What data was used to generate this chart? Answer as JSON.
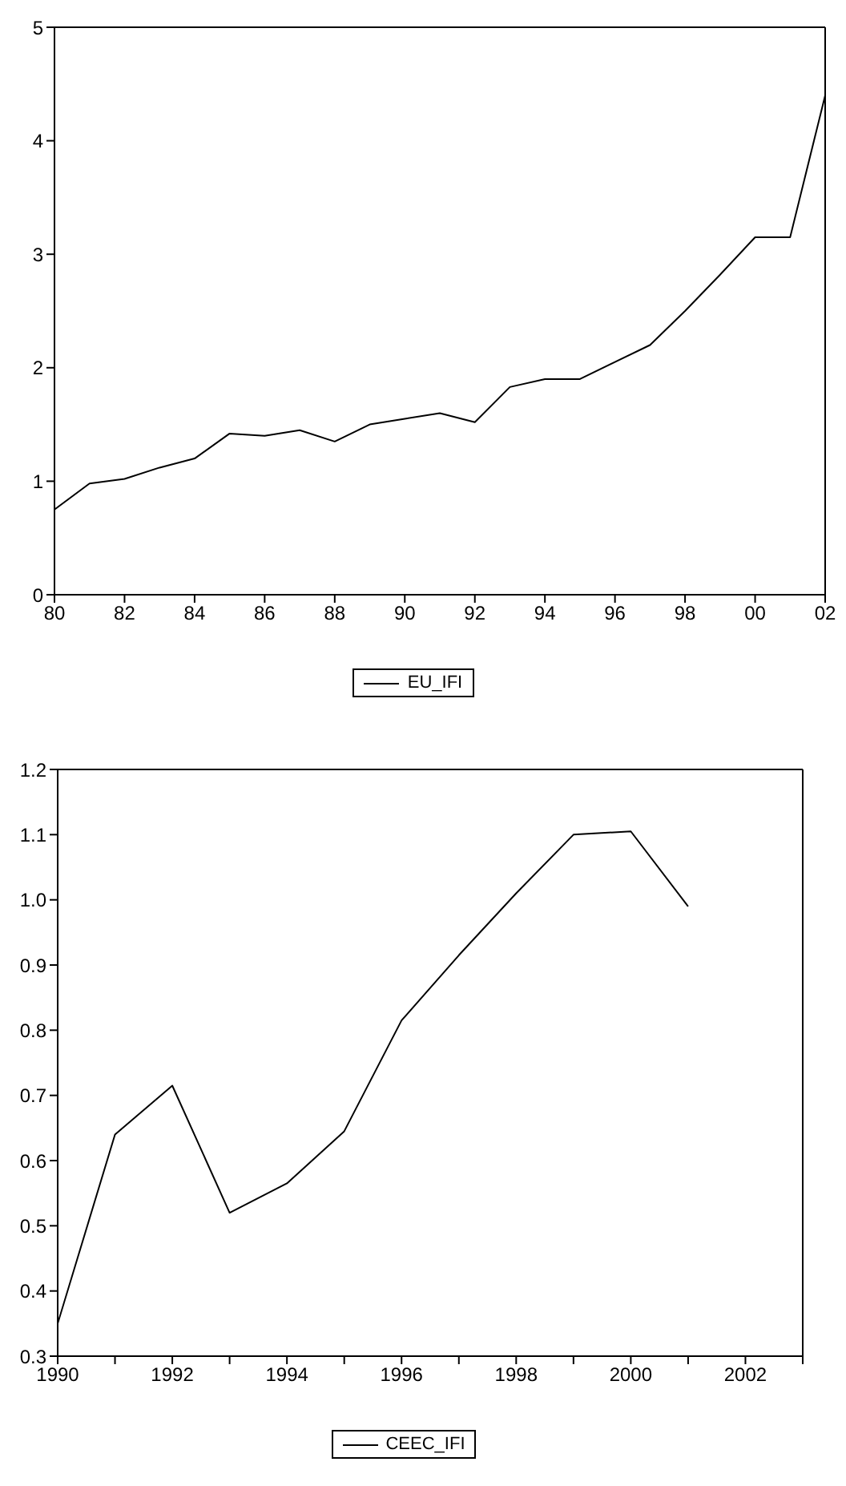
{
  "chart_data": [
    {
      "type": "line",
      "x": [
        1980,
        1981,
        1982,
        1983,
        1984,
        1985,
        1986,
        1987,
        1988,
        1989,
        1990,
        1991,
        1992,
        1993,
        1994,
        1995,
        1996,
        1997,
        1998,
        1999,
        2000,
        2001,
        2002
      ],
      "series": [
        {
          "name": "EU_IFI",
          "color": "#000000",
          "values": [
            0.75,
            0.98,
            1.02,
            1.12,
            1.2,
            1.42,
            1.4,
            1.45,
            1.35,
            1.5,
            1.55,
            1.6,
            1.52,
            1.83,
            1.9,
            1.9,
            2.05,
            2.2,
            2.5,
            2.82,
            3.15,
            3.15,
            4.4
          ]
        }
      ],
      "xlim": [
        1980,
        2002
      ],
      "xticks": [
        {
          "value": 1980,
          "label": "80"
        },
        {
          "value": 1982,
          "label": "82"
        },
        {
          "value": 1984,
          "label": "84"
        },
        {
          "value": 1986,
          "label": "86"
        },
        {
          "value": 1988,
          "label": "88"
        },
        {
          "value": 1990,
          "label": "90"
        },
        {
          "value": 1992,
          "label": "92"
        },
        {
          "value": 1994,
          "label": "94"
        },
        {
          "value": 1996,
          "label": "96"
        },
        {
          "value": 1998,
          "label": "98"
        },
        {
          "value": 2000,
          "label": "00"
        },
        {
          "value": 2002,
          "label": "02"
        }
      ],
      "ylim": [
        0,
        5
      ],
      "yticks": [
        0,
        1,
        2,
        3,
        4,
        5
      ],
      "grid": false,
      "legend": "bottom",
      "marker": "none",
      "line_style": "solid"
    },
    {
      "type": "line",
      "x": [
        1990,
        1991,
        1992,
        1993,
        1994,
        1995,
        1996,
        1997,
        1998,
        1999,
        2000,
        2001
      ],
      "series": [
        {
          "name": "CEEC_IFI",
          "color": "#000000",
          "values": [
            0.35,
            0.64,
            0.715,
            0.52,
            0.565,
            0.645,
            0.815,
            0.915,
            1.01,
            1.1,
            1.105,
            0.99
          ]
        }
      ],
      "xlim": [
        1990,
        2003
      ],
      "xticks": [
        1990,
        {
          "value": 1991,
          "label": null
        },
        1992,
        {
          "value": 1993,
          "label": null
        },
        1994,
        {
          "value": 1995,
          "label": null
        },
        1996,
        {
          "value": 1997,
          "label": null
        },
        1998,
        {
          "value": 1999,
          "label": null
        },
        2000,
        {
          "value": 2001,
          "label": null
        },
        2002,
        {
          "value": 2003,
          "label": null
        }
      ],
      "ylim": [
        0.3,
        1.2
      ],
      "yticks": [
        {
          "value": 0.3,
          "label": "0.3"
        },
        {
          "value": 0.4,
          "label": "0.4"
        },
        {
          "value": 0.5,
          "label": "0.5"
        },
        {
          "value": 0.6,
          "label": "0.6"
        },
        {
          "value": 0.7,
          "label": "0.7"
        },
        {
          "value": 0.8,
          "label": "0.8"
        },
        {
          "value": 0.9,
          "label": "0.9"
        },
        {
          "value": 1.0,
          "label": "1.0"
        },
        {
          "value": 1.1,
          "label": "1.1"
        },
        {
          "value": 1.2,
          "label": "1.2"
        }
      ],
      "grid": false,
      "legend": "bottom",
      "marker": "none",
      "line_style": "solid"
    }
  ]
}
